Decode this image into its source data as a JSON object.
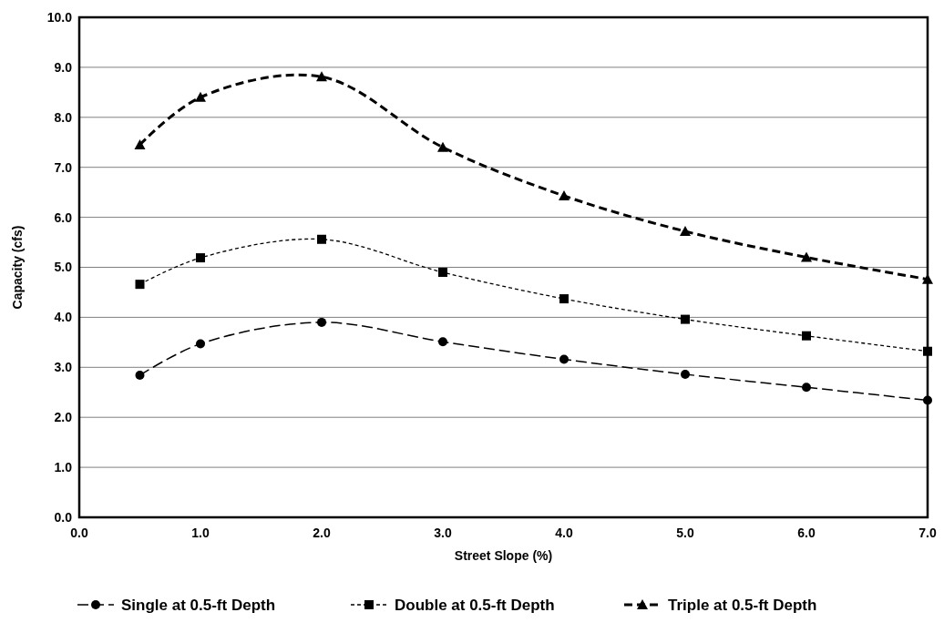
{
  "chart_data": {
    "type": "line",
    "xlabel": "Street Slope (%)",
    "ylabel": "Capacity (cfs)",
    "x": [
      0.5,
      1.0,
      2.0,
      3.0,
      4.0,
      5.0,
      6.0,
      7.0
    ],
    "series": [
      {
        "name": "Single at 0.5-ft Depth",
        "color": "#000000",
        "marker": "circle",
        "line_style": "dashed",
        "values": [
          2.84,
          3.47,
          3.9,
          3.51,
          3.16,
          2.86,
          2.6,
          2.34
        ]
      },
      {
        "name": "Double at 0.5-ft Depth",
        "color": "#000000",
        "marker": "square",
        "line_style": "dotted",
        "values": [
          4.66,
          5.19,
          5.56,
          4.9,
          4.37,
          3.96,
          3.63,
          3.32
        ]
      },
      {
        "name": "Triple at 0.5-ft Depth",
        "color": "#000000",
        "marker": "triangle",
        "line_style": "dashed",
        "values": [
          7.45,
          8.4,
          8.81,
          7.4,
          6.43,
          5.72,
          5.2,
          4.76
        ]
      }
    ],
    "xlim": [
      0,
      7
    ],
    "xticks": [
      {
        "value": 0,
        "label": "0.0"
      },
      {
        "value": 1,
        "label": "1.0"
      },
      {
        "value": 2,
        "label": "2.0"
      },
      {
        "value": 3,
        "label": "3.0"
      },
      {
        "value": 4,
        "label": "4.0"
      },
      {
        "value": 5,
        "label": "5.0"
      },
      {
        "value": 6,
        "label": "6.0"
      },
      {
        "value": 7,
        "label": "7.0"
      }
    ],
    "ylim": [
      0,
      10
    ],
    "yticks": [
      {
        "value": 0,
        "label": "0.0"
      },
      {
        "value": 1,
        "label": "1.0"
      },
      {
        "value": 2,
        "label": "2.0"
      },
      {
        "value": 3,
        "label": "3.0"
      },
      {
        "value": 4,
        "label": "4.0"
      },
      {
        "value": 5,
        "label": "5.0"
      },
      {
        "value": 6,
        "label": "6.0"
      },
      {
        "value": 7,
        "label": "7.0"
      },
      {
        "value": 8,
        "label": "8.0"
      },
      {
        "value": 9,
        "label": "9.0"
      },
      {
        "value": 10,
        "label": "10.0"
      }
    ],
    "grid": "y",
    "legend": "bottom"
  }
}
